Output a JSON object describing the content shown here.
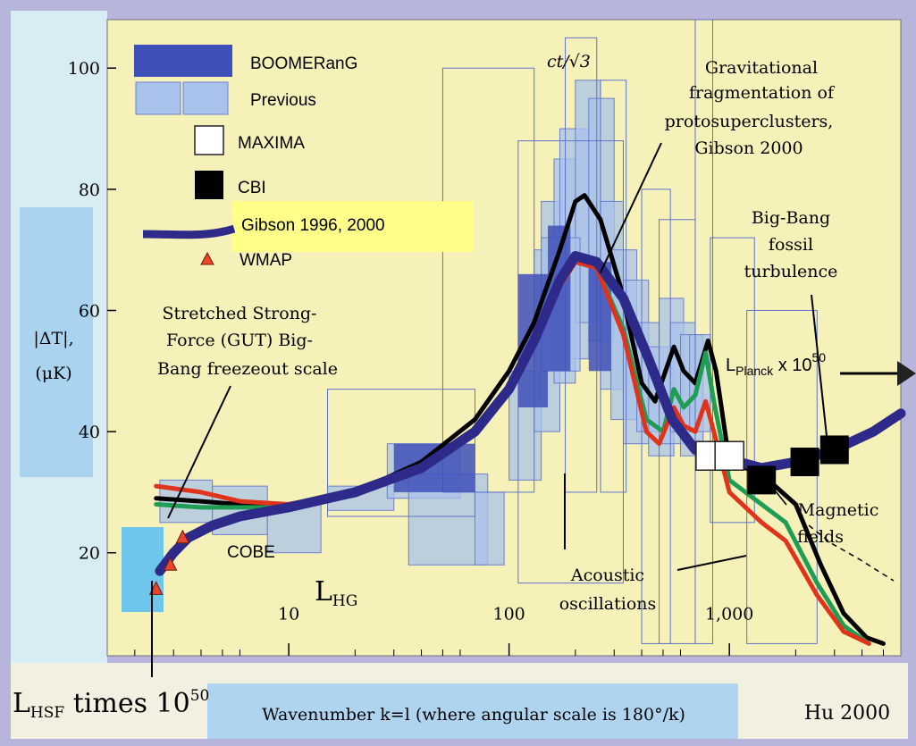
{
  "chart_data": {
    "type": "line",
    "title": "",
    "xlabel": "Wavenumber k=l (where angular scale is 180°/k)",
    "ylabel": [
      "|ΔT|,",
      "(μK)"
    ],
    "x_scale": "log",
    "xlim": [
      1.5,
      6000
    ],
    "ylim": [
      3,
      108
    ],
    "x_ticks": [
      {
        "v": 10,
        "label": "10"
      },
      {
        "v": 100,
        "label": "100"
      },
      {
        "v": 1000,
        "label": "1,000"
      }
    ],
    "y_ticks": [
      20,
      40,
      60,
      80,
      100
    ],
    "credit": "Hu 2000",
    "legend": {
      "boomerang": "BOOMERanG",
      "previous": "Previous",
      "maxima": "MAXIMA",
      "cbi": "CBI",
      "gibson": "Gibson 1996, 2000",
      "wmap": "WMAP"
    },
    "series": [
      {
        "name": "Gibson 1996, 2000",
        "color": "#2d2a8a",
        "points": [
          [
            2.6,
            17
          ],
          [
            3.0,
            20
          ],
          [
            3.5,
            22.5
          ],
          [
            4.5,
            24.5
          ],
          [
            6,
            26
          ],
          [
            10,
            27.5
          ],
          [
            20,
            30
          ],
          [
            40,
            34
          ],
          [
            70,
            40
          ],
          [
            100,
            47
          ],
          [
            130,
            55
          ],
          [
            170,
            65
          ],
          [
            200,
            69
          ],
          [
            250,
            68
          ],
          [
            330,
            62
          ],
          [
            430,
            52
          ],
          [
            550,
            42
          ],
          [
            700,
            37
          ],
          [
            900,
            35
          ],
          [
            1100,
            35
          ],
          [
            1400,
            34
          ],
          [
            2000,
            35
          ],
          [
            3000,
            37
          ],
          [
            4500,
            40
          ],
          [
            6000,
            43
          ]
        ]
      },
      {
        "color": "#000000",
        "points": [
          [
            2.5,
            29
          ],
          [
            4,
            28.5
          ],
          [
            6,
            28
          ],
          [
            10,
            28
          ],
          [
            20,
            30
          ],
          [
            40,
            35
          ],
          [
            70,
            42
          ],
          [
            100,
            50
          ],
          [
            130,
            58
          ],
          [
            170,
            70
          ],
          [
            200,
            78
          ],
          [
            220,
            79
          ],
          [
            260,
            75
          ],
          [
            320,
            64
          ],
          [
            400,
            48
          ],
          [
            460,
            45
          ],
          [
            560,
            54
          ],
          [
            620,
            50
          ],
          [
            700,
            48
          ],
          [
            800,
            55
          ],
          [
            870,
            50
          ],
          [
            1000,
            35
          ],
          [
            1400,
            33
          ],
          [
            2000,
            28
          ],
          [
            2600,
            18
          ],
          [
            3300,
            10
          ],
          [
            4200,
            6
          ],
          [
            5000,
            5
          ]
        ]
      },
      {
        "color": "#1f9d55",
        "points": [
          [
            2.5,
            28
          ],
          [
            4,
            27.5
          ],
          [
            6,
            27.5
          ],
          [
            10,
            27.5
          ],
          [
            20,
            29.5
          ],
          [
            40,
            34
          ],
          [
            70,
            40
          ],
          [
            100,
            47
          ],
          [
            130,
            55
          ],
          [
            170,
            64
          ],
          [
            200,
            68
          ],
          [
            250,
            67
          ],
          [
            330,
            57
          ],
          [
            420,
            42
          ],
          [
            500,
            40
          ],
          [
            560,
            47
          ],
          [
            620,
            44
          ],
          [
            700,
            46
          ],
          [
            780,
            53
          ],
          [
            850,
            45
          ],
          [
            1000,
            32
          ],
          [
            1400,
            28
          ],
          [
            1800,
            25
          ],
          [
            2500,
            15
          ],
          [
            3300,
            8
          ],
          [
            4300,
            5
          ]
        ]
      },
      {
        "color": "#e0331b",
        "points": [
          [
            2.5,
            31
          ],
          [
            4,
            30
          ],
          [
            6,
            28.5
          ],
          [
            10,
            28
          ],
          [
            20,
            30
          ],
          [
            40,
            34
          ],
          [
            70,
            40
          ],
          [
            100,
            47
          ],
          [
            130,
            55
          ],
          [
            170,
            64
          ],
          [
            200,
            68
          ],
          [
            250,
            67
          ],
          [
            330,
            56
          ],
          [
            420,
            40
          ],
          [
            480,
            38
          ],
          [
            560,
            44
          ],
          [
            620,
            41
          ],
          [
            700,
            40
          ],
          [
            780,
            45
          ],
          [
            850,
            40
          ],
          [
            1000,
            30
          ],
          [
            1400,
            25
          ],
          [
            1800,
            22
          ],
          [
            2500,
            13
          ],
          [
            3300,
            7
          ],
          [
            4300,
            5
          ]
        ]
      }
    ],
    "wmap_points": [
      [
        2.5,
        14
      ],
      [
        2.9,
        18
      ],
      [
        3.3,
        22.5
      ]
    ],
    "maxima_points": [
      [
        820,
        36
      ],
      [
        1000,
        36
      ]
    ],
    "cbi_points": [
      [
        1400,
        32
      ],
      [
        2200,
        35
      ],
      [
        3000,
        37
      ]
    ]
  },
  "annotations": {
    "lhg": "L",
    "lhg_sub": "HG",
    "lhsf_main": "L",
    "lhsf_sub": "HSF",
    "lhsf_times": " times 10",
    "lhsf_exp": "50",
    "stretched": [
      "Stretched Strong-",
      "Force (GUT) Big-",
      "Bang freezeout scale"
    ],
    "cobe": "COBE",
    "gravitational": [
      "Gravitational",
      "fragmentation of",
      "protosuperclusters,",
      "Gibson 2000"
    ],
    "bigbang": [
      "Big-Bang",
      "fossil",
      "turbulence"
    ],
    "lplanck_main": "L",
    "lplanck_sub": "Planck",
    "lplanck_times": " x 10",
    "lplanck_exp": "50",
    "magnetic": [
      "Magnetic",
      "fields"
    ],
    "acoustic": [
      "Acoustic",
      "oscillations"
    ],
    "ct_label": "ct/√3"
  }
}
